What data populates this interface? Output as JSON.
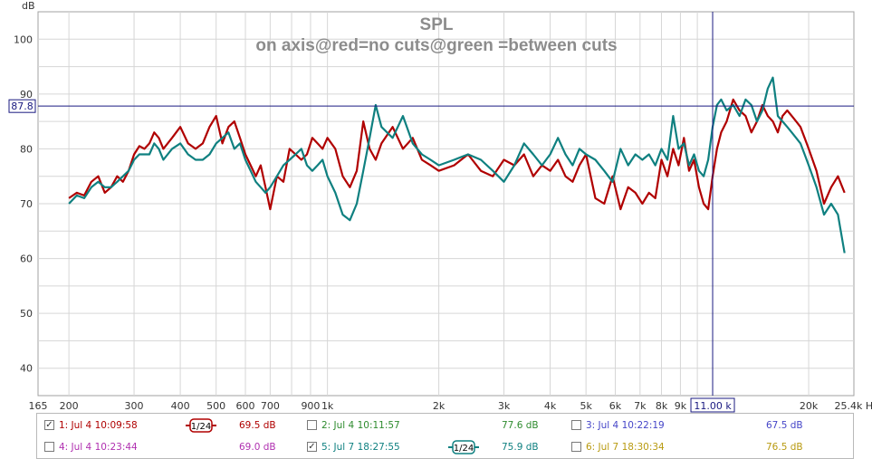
{
  "chart_data": {
    "type": "line",
    "title": "SPL",
    "subtitle": "on axis@red=no cuts@green =between cuts",
    "ylabel": "dB",
    "xunit": "Hz",
    "xscale": "log",
    "xlim": [
      165,
      26500
    ],
    "ylim": [
      35,
      105
    ],
    "yticks": [
      40,
      50,
      60,
      70,
      80,
      90,
      100
    ],
    "xticks": [
      {
        "v": 165,
        "t": "165"
      },
      {
        "v": 200,
        "t": "200"
      },
      {
        "v": 300,
        "t": "300"
      },
      {
        "v": 400,
        "t": "400"
      },
      {
        "v": 500,
        "t": "500"
      },
      {
        "v": 600,
        "t": "600"
      },
      {
        "v": 700,
        "t": "700"
      },
      {
        "v": 900,
        "t": "900"
      },
      {
        "v": 1000,
        "t": "1k"
      },
      {
        "v": 2000,
        "t": "2k"
      },
      {
        "v": 3000,
        "t": "3k"
      },
      {
        "v": 4000,
        "t": "4k"
      },
      {
        "v": 5000,
        "t": "5k"
      },
      {
        "v": 6000,
        "t": "6k"
      },
      {
        "v": 7000,
        "t": "7k"
      },
      {
        "v": 8000,
        "t": "8k"
      },
      {
        "v": 9000,
        "t": "9k"
      },
      {
        "v": 20000,
        "t": "20k"
      },
      {
        "v": 25400,
        "t": "25.4k Hz"
      }
    ],
    "grid": true,
    "cursor": {
      "x": 11000,
      "y": 87.8,
      "x_label": "11.00 k",
      "y_label": "87.8"
    },
    "series": [
      {
        "name": "1: Jul 4 10:09:58",
        "color": "#b00000",
        "width": 2.2,
        "x": [
          200,
          210,
          220,
          230,
          240,
          250,
          260,
          270,
          280,
          290,
          300,
          310,
          320,
          330,
          340,
          350,
          360,
          380,
          400,
          420,
          440,
          460,
          480,
          500,
          520,
          540,
          560,
          580,
          600,
          620,
          640,
          660,
          680,
          700,
          730,
          760,
          790,
          820,
          850,
          880,
          910,
          940,
          970,
          1000,
          1050,
          1100,
          1150,
          1200,
          1250,
          1300,
          1350,
          1400,
          1500,
          1600,
          1700,
          1800,
          1900,
          2000,
          2200,
          2400,
          2600,
          2800,
          3000,
          3200,
          3400,
          3600,
          3800,
          4000,
          4200,
          4400,
          4600,
          4800,
          5000,
          5300,
          5600,
          5900,
          6200,
          6500,
          6800,
          7100,
          7400,
          7700,
          8000,
          8300,
          8600,
          8900,
          9200,
          9500,
          9800,
          10100,
          10400,
          10700,
          11000,
          11300,
          11600,
          12000,
          12500,
          13000,
          13500,
          14000,
          14500,
          15000,
          15500,
          16000,
          16500,
          17000,
          17500,
          18000,
          18500,
          19000,
          19500,
          20000,
          21000,
          22000,
          23000,
          24000,
          25000
        ],
        "y": [
          71,
          72,
          71.5,
          74,
          75,
          72,
          73,
          75,
          74,
          76,
          79,
          80.5,
          80,
          81,
          83,
          82,
          80,
          82,
          84,
          81,
          80,
          81,
          84,
          86,
          81,
          84,
          85,
          82,
          79,
          77,
          75,
          77,
          73,
          69,
          75,
          74,
          80,
          79,
          78,
          79,
          82,
          81,
          80,
          82,
          80,
          75,
          73,
          76,
          85,
          80,
          78,
          81,
          84,
          80,
          82,
          78,
          77,
          76,
          77,
          79,
          76,
          75,
          78,
          77,
          79,
          75,
          77,
          76,
          78,
          75,
          74,
          77,
          79,
          71,
          70,
          75,
          69,
          73,
          72,
          70,
          72,
          71,
          78,
          75,
          80,
          77,
          82,
          76,
          78,
          73,
          70,
          69,
          75,
          80,
          83,
          85,
          89,
          87,
          86,
          83,
          85,
          88,
          86,
          85,
          83,
          86,
          87,
          86,
          85,
          84,
          82,
          80,
          76,
          70,
          73,
          75,
          72
        ]
      },
      {
        "name": "2: Jul 4 10:11:57",
        "value": "77.6 dB",
        "color": "#2e8b2e",
        "hidden": true
      },
      {
        "name": "3: Jul 4 10:22:19",
        "value": "67.5 dB",
        "color": "#4646c8",
        "hidden": true
      },
      {
        "name": "4: Jul 4 10:23:44",
        "value": "69.0 dB",
        "color": "#b030b0",
        "hidden": true
      },
      {
        "name": "5: Jul 7 18:27:55",
        "color": "#0f8080",
        "width": 2.2,
        "x": [
          200,
          210,
          220,
          230,
          240,
          250,
          260,
          270,
          280,
          290,
          300,
          310,
          320,
          330,
          340,
          350,
          360,
          380,
          400,
          420,
          440,
          460,
          480,
          500,
          520,
          540,
          560,
          580,
          600,
          620,
          640,
          660,
          680,
          700,
          730,
          760,
          790,
          820,
          850,
          880,
          910,
          940,
          970,
          1000,
          1050,
          1100,
          1150,
          1200,
          1250,
          1300,
          1350,
          1400,
          1500,
          1600,
          1700,
          1800,
          1900,
          2000,
          2200,
          2400,
          2600,
          2800,
          3000,
          3200,
          3400,
          3600,
          3800,
          4000,
          4200,
          4400,
          4600,
          4800,
          5000,
          5300,
          5600,
          5900,
          6200,
          6500,
          6800,
          7100,
          7400,
          7700,
          8000,
          8300,
          8600,
          8900,
          9200,
          9500,
          9800,
          10100,
          10400,
          10700,
          11000,
          11300,
          11600,
          12000,
          12500,
          13000,
          13500,
          14000,
          14500,
          15000,
          15500,
          16000,
          16500,
          17000,
          17500,
          18000,
          18500,
          19000,
          19500,
          20000,
          21000,
          22000,
          23000,
          24000,
          25000
        ],
        "y": [
          70,
          71.5,
          71,
          73,
          74,
          73,
          73,
          74,
          75,
          76,
          78,
          79,
          79,
          79,
          81,
          80,
          78,
          80,
          81,
          79,
          78,
          78,
          79,
          81,
          82,
          83,
          80,
          81,
          78,
          76,
          74,
          73,
          72,
          73,
          75,
          77,
          78,
          79,
          80,
          77,
          76,
          77,
          78,
          75,
          72,
          68,
          67,
          70,
          76,
          82,
          88,
          84,
          82,
          86,
          81,
          79,
          78,
          77,
          78,
          79,
          78,
          76,
          74,
          77,
          81,
          79,
          77,
          79,
          82,
          79,
          77,
          80,
          79,
          78,
          76,
          74,
          80,
          77,
          79,
          78,
          79,
          77,
          80,
          78,
          86,
          80,
          81,
          77,
          79,
          76,
          75,
          78,
          84,
          88,
          89,
          87,
          88,
          86,
          89,
          88,
          85,
          87,
          91,
          93,
          86,
          85,
          84,
          83,
          82,
          81,
          79,
          77,
          73,
          68,
          70,
          68,
          61
        ]
      },
      {
        "name": "6: Jul 7 18:30:34",
        "value": "76.5 dB",
        "color": "#b89a10",
        "hidden": true
      }
    ]
  },
  "legend": {
    "e1": {
      "label": "1: Jul 4 10:09:58",
      "value": "69.5 dB",
      "checked": "✓",
      "smooth": "1/24",
      "color": "#b00000"
    },
    "e2": {
      "label": "2: Jul 4 10:11:57",
      "value": "77.6 dB",
      "checked": "",
      "color": "#2e8b2e"
    },
    "e3": {
      "label": "3: Jul 4 10:22:19",
      "value": "67.5 dB",
      "checked": "",
      "color": "#4646c8"
    },
    "e4": {
      "label": "4: Jul 4 10:23:44",
      "value": "69.0 dB",
      "checked": "",
      "color": "#b030b0"
    },
    "e5": {
      "label": "5: Jul 7 18:27:55",
      "value": "75.9 dB",
      "checked": "✓",
      "smooth": "1/24",
      "color": "#0f8080"
    },
    "e6": {
      "label": "6: Jul 7 18:30:34",
      "value": "76.5 dB",
      "checked": "",
      "color": "#b89a10"
    }
  }
}
